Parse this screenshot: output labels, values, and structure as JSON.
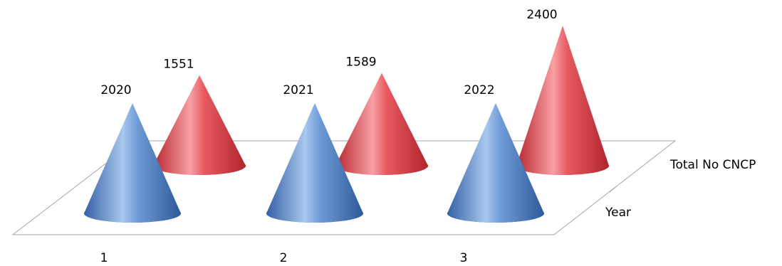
{
  "chart_data": {
    "type": "bar",
    "style": "3d-cone",
    "categories": [
      "1",
      "2",
      "3"
    ],
    "series": [
      {
        "name": "Year",
        "values": [
          2020,
          2021,
          2022
        ],
        "color": "#4a7fc4"
      },
      {
        "name": "Total No CNCP",
        "values": [
          1551,
          1589,
          2400
        ],
        "color": "#e0454c"
      }
    ],
    "title": "",
    "xlabel": "",
    "ylabel": "",
    "grid": false,
    "legend": "none",
    "data_labels": true
  }
}
